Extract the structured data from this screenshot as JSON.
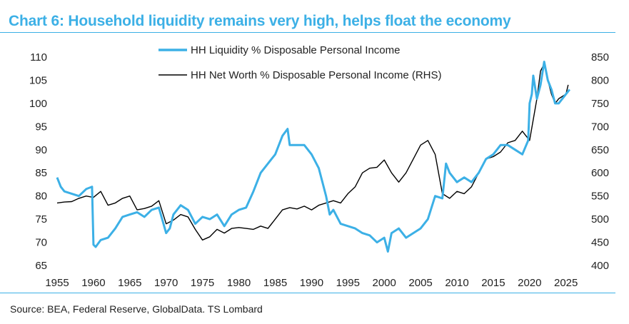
{
  "header": {
    "title": "Chart 6: Household liquidity remains very high, helps float the economy"
  },
  "footer": {
    "source": "Source: BEA, Federal Reserve, GlobalData. TS Lombard"
  },
  "colors": {
    "accent": "#3cb0e6",
    "liquidity": "#3cb0e6",
    "networth": "#000000"
  },
  "chart_data": {
    "type": "line",
    "title": "Chart 6: Household liquidity remains very high, helps float the economy",
    "xlabel": "",
    "ylabel": "",
    "xlim": [
      1955,
      2026.5
    ],
    "x_ticks": [
      "1955",
      "1960",
      "1965",
      "1970",
      "1975",
      "1980",
      "1985",
      "1990",
      "1995",
      "2000",
      "2005",
      "2010",
      "2015",
      "2020",
      "2025"
    ],
    "y_left": {
      "lim": [
        65,
        110
      ],
      "ticks": [
        "110",
        "105",
        "100",
        "95",
        "90",
        "85",
        "80",
        "75",
        "70",
        "65"
      ]
    },
    "y_right": {
      "lim": [
        400,
        850
      ],
      "ticks": [
        "850",
        "800",
        "750",
        "700",
        "650",
        "600",
        "550",
        "500",
        "450",
        "400"
      ]
    },
    "legend_position": "top-center",
    "series": [
      {
        "name": "HH Liquidity % Disposable Personal Income",
        "axis": "left",
        "color": "#3cb0e6",
        "x": [
          1955,
          1955.5,
          1956,
          1957,
          1958,
          1959,
          1959.8,
          1960,
          1960.3,
          1961,
          1962,
          1963,
          1964,
          1965,
          1966,
          1967,
          1968,
          1969,
          1970,
          1970.5,
          1971,
          1972,
          1973,
          1974,
          1975,
          1976,
          1977,
          1978,
          1979,
          1980,
          1981,
          1982,
          1983,
          1984,
          1985,
          1986,
          1986.7,
          1987,
          1988,
          1989,
          1990,
          1991,
          1992,
          1992.5,
          1993,
          1994,
          1995,
          1996,
          1997,
          1998,
          1999,
          2000,
          2000.5,
          2001,
          2002,
          2003,
          2004,
          2005,
          2006,
          2007,
          2008,
          2008.5,
          2009,
          2010,
          2011,
          2012,
          2013,
          2014,
          2015,
          2016,
          2017,
          2018,
          2019,
          2019.8,
          2020,
          2020.3,
          2020.5,
          2021,
          2021.5,
          2022,
          2022.5,
          2023,
          2023.5,
          2024,
          2025,
          2025.5
        ],
        "values": [
          84,
          82,
          81,
          80.5,
          80,
          81.5,
          82,
          69.5,
          69,
          70.5,
          71,
          73,
          75.5,
          76,
          76.5,
          75.5,
          77,
          77.5,
          72,
          73,
          76,
          78,
          77,
          74,
          75.5,
          75,
          76,
          73.5,
          76,
          77,
          77.5,
          81,
          85,
          87,
          89,
          93,
          94.5,
          91,
          91,
          91,
          89,
          86,
          80,
          76,
          77,
          74,
          73.5,
          73,
          72,
          71.5,
          70,
          71,
          68,
          72,
          73,
          71,
          72,
          73,
          75,
          80,
          79.5,
          87,
          85,
          83,
          84,
          83,
          85,
          88,
          89,
          91,
          91,
          90,
          89,
          92,
          100,
          102,
          106,
          101,
          104,
          109,
          105,
          103,
          100,
          100,
          102,
          103
        ]
      },
      {
        "name": "HH Net Worth % Disposable Personal Income (RHS)",
        "axis": "right",
        "color": "#000000",
        "x": [
          1955,
          1956,
          1957,
          1958,
          1959,
          1960,
          1961,
          1962,
          1963,
          1964,
          1965,
          1966,
          1967,
          1968,
          1969,
          1970,
          1971,
          1972,
          1973,
          1974,
          1975,
          1976,
          1977,
          1978,
          1979,
          1980,
          1981,
          1982,
          1983,
          1984,
          1985,
          1986,
          1987,
          1988,
          1989,
          1990,
          1991,
          1992,
          1993,
          1994,
          1995,
          1996,
          1997,
          1998,
          1999,
          2000,
          2001,
          2002,
          2003,
          2004,
          2005,
          2006,
          2007,
          2008,
          2009,
          2010,
          2011,
          2012,
          2013,
          2014,
          2015,
          2016,
          2017,
          2018,
          2019,
          2020,
          2021,
          2021.5,
          2022,
          2022.5,
          2023,
          2023.5,
          2024,
          2025,
          2025.3
        ],
        "values": [
          535,
          537,
          538,
          545,
          550,
          547,
          560,
          530,
          535,
          545,
          550,
          520,
          523,
          528,
          540,
          490,
          498,
          510,
          505,
          478,
          455,
          462,
          478,
          470,
          480,
          482,
          480,
          478,
          485,
          480,
          500,
          520,
          525,
          522,
          528,
          520,
          530,
          535,
          540,
          535,
          555,
          570,
          600,
          610,
          612,
          628,
          600,
          580,
          600,
          630,
          660,
          670,
          640,
          555,
          545,
          560,
          555,
          570,
          600,
          630,
          635,
          645,
          665,
          670,
          690,
          670,
          760,
          820,
          835,
          800,
          770,
          750,
          760,
          770,
          790
        ]
      }
    ]
  }
}
